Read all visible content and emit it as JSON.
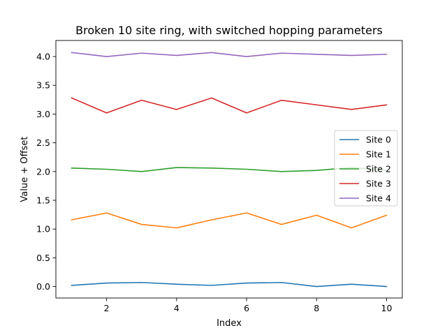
{
  "chart_data": {
    "type": "line",
    "title": "Broken 10 site ring, with switched hopping parameters",
    "xlabel": "Index",
    "ylabel": "Value + Offset",
    "x": [
      1,
      2,
      3,
      4,
      5,
      6,
      7,
      8,
      9,
      10
    ],
    "xlim": [
      0.55,
      10.45
    ],
    "ylim": [
      -0.2,
      4.28
    ],
    "xticks": [
      2,
      4,
      6,
      8,
      10
    ],
    "xtick_labels": [
      "2",
      "4",
      "6",
      "8",
      "10"
    ],
    "yticks": [
      0.0,
      0.5,
      1.0,
      1.5,
      2.0,
      2.5,
      3.0,
      3.5,
      4.0
    ],
    "ytick_labels": [
      "0.0",
      "0.5",
      "1.0",
      "1.5",
      "2.0",
      "2.5",
      "3.0",
      "3.5",
      "4.0"
    ],
    "grid": false,
    "legend_position": "center-right",
    "series": [
      {
        "name": "Site 0",
        "color": "#1f77b4",
        "values": [
          0.02,
          0.06,
          0.07,
          0.04,
          0.02,
          0.06,
          0.07,
          0.0,
          0.04,
          0.0
        ]
      },
      {
        "name": "Site 1",
        "color": "#ff7f0e",
        "values": [
          1.16,
          1.28,
          1.08,
          1.02,
          1.16,
          1.28,
          1.08,
          1.24,
          1.02,
          1.24
        ]
      },
      {
        "name": "Site 2",
        "color": "#2ca02c",
        "values": [
          2.06,
          2.04,
          2.0,
          2.07,
          2.06,
          2.04,
          2.0,
          2.02,
          2.07,
          2.02
        ]
      },
      {
        "name": "Site 3",
        "color": "#d62728",
        "values": [
          3.28,
          3.02,
          3.24,
          3.08,
          3.28,
          3.02,
          3.24,
          3.16,
          3.08,
          3.16
        ]
      },
      {
        "name": "Site 4",
        "color": "#9467bd",
        "values": [
          4.07,
          4.0,
          4.06,
          4.02,
          4.07,
          4.0,
          4.06,
          4.04,
          4.02,
          4.04
        ]
      }
    ]
  }
}
